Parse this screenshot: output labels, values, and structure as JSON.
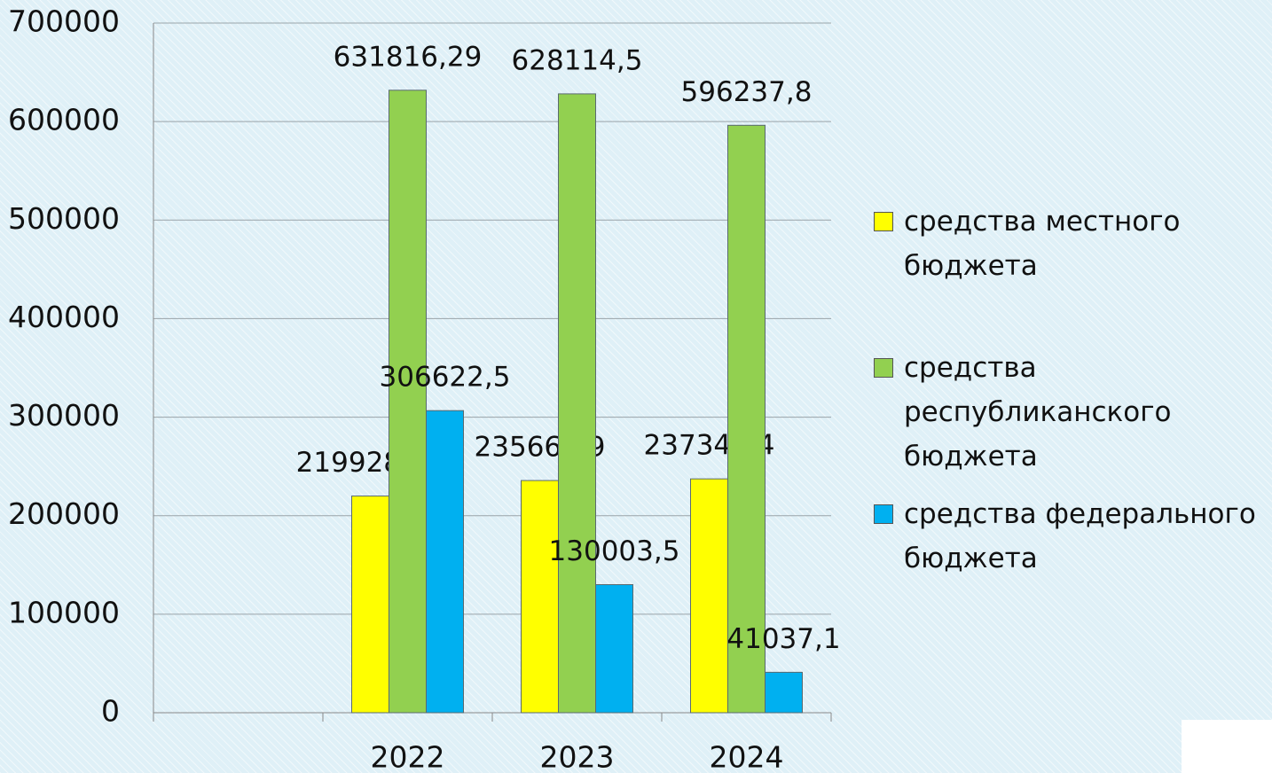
{
  "chart_data": {
    "type": "bar",
    "categories": [
      null,
      "2022",
      "2023",
      "2024"
    ],
    "series": [
      {
        "name": "средства местного бюджета",
        "color": "#ffff00",
        "values": [
          null,
          219928.41,
          235668.9,
          237344.4
        ],
        "value_labels": [
          null,
          "219928,41",
          "235668,9",
          "237344,4"
        ]
      },
      {
        "name": "средства республиканского бюджета",
        "color": "#92d050",
        "values": [
          null,
          631816.29,
          628114.5,
          596237.8
        ],
        "value_labels": [
          null,
          "631816,29",
          "628114,5",
          "596237,8"
        ]
      },
      {
        "name": "средства федерального бюджета",
        "color": "#00b0f0",
        "values": [
          null,
          306622.5,
          130003.5,
          41037.1
        ],
        "value_labels": [
          null,
          "306622,5",
          "130003,5",
          "41037,1"
        ]
      }
    ],
    "ylim": [
      0,
      700000
    ],
    "yticks": [
      0,
      100000,
      200000,
      300000,
      400000,
      500000,
      600000,
      700000
    ],
    "grid": true,
    "legend": "right"
  }
}
